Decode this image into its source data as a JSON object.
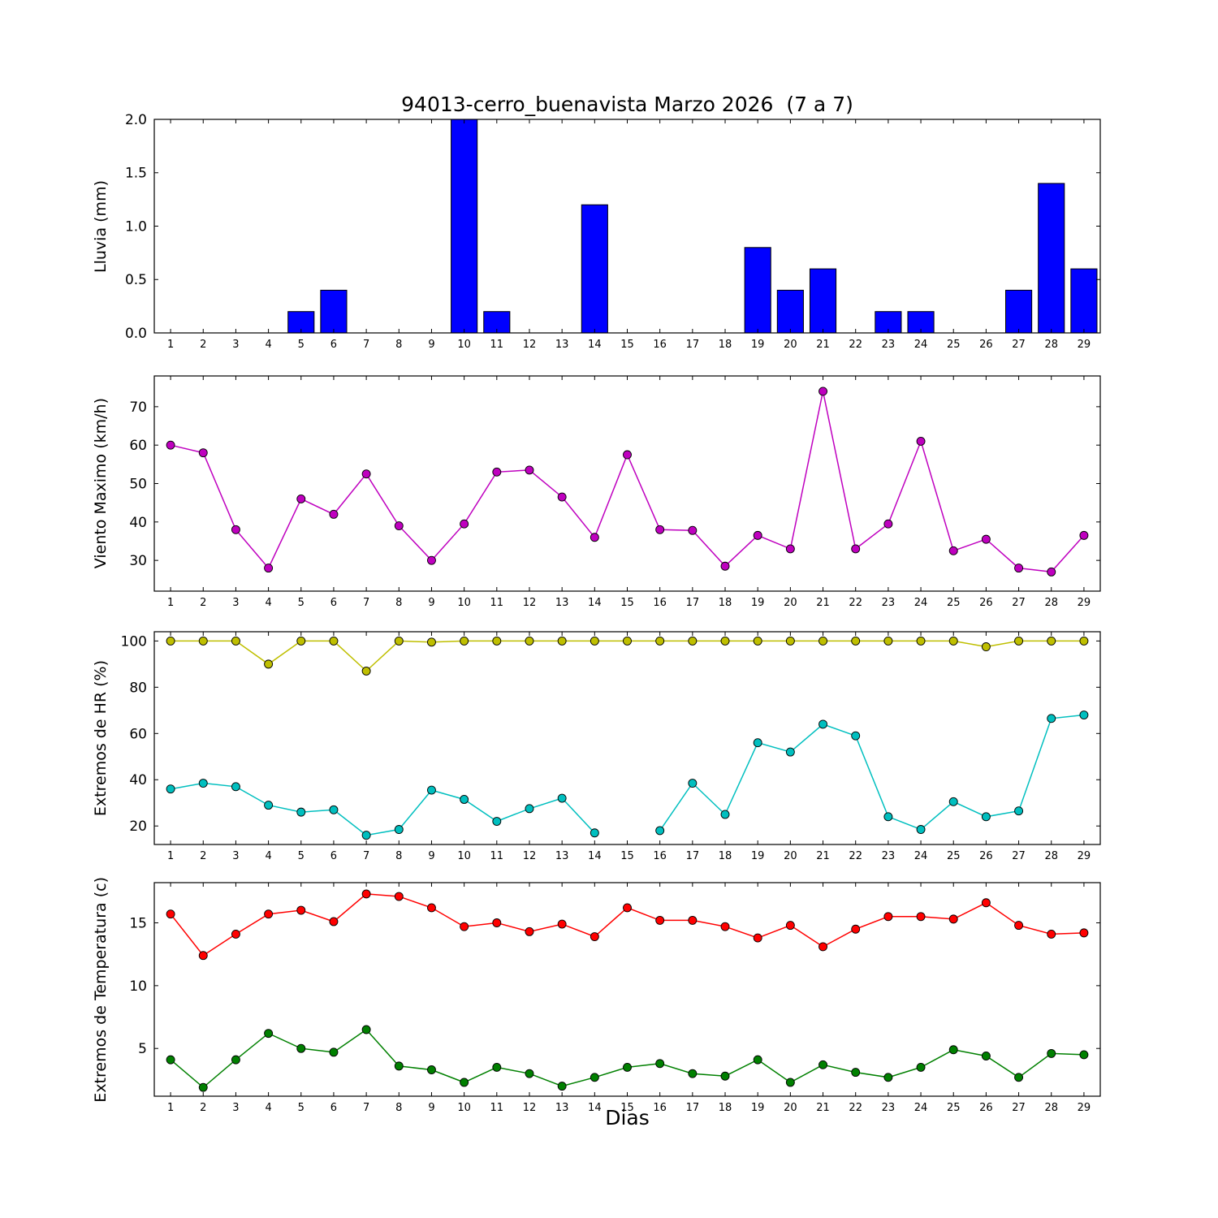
{
  "chart_data": [
    {
      "type": "bar",
      "title": "94013-cerro_buenavista Marzo 2026  (7 a 7)",
      "ylabel": "Lluvia (mm)",
      "categories": [
        1,
        2,
        3,
        4,
        5,
        6,
        7,
        8,
        9,
        10,
        11,
        12,
        13,
        14,
        15,
        16,
        17,
        18,
        19,
        20,
        21,
        22,
        23,
        24,
        25,
        26,
        27,
        28,
        29
      ],
      "values": [
        0,
        0,
        0,
        0,
        0.2,
        0.4,
        0,
        0,
        0,
        2.0,
        0.2,
        0,
        0,
        1.2,
        0,
        0,
        0,
        0,
        0.8,
        0.4,
        0.6,
        0,
        0.2,
        0.2,
        0,
        0,
        0.4,
        1.4,
        0.6
      ],
      "ylim": [
        0,
        2.0
      ],
      "yticks": [
        0,
        0.5,
        1.0,
        1.5,
        2.0
      ],
      "ytick_labels": [
        "0.0",
        "0.5",
        "1.0",
        "1.5",
        "2.0"
      ],
      "bar_color": "#0000ff",
      "bar_edge_color": "#000000",
      "grid": false,
      "legend": "none"
    },
    {
      "type": "line",
      "title": "",
      "ylabel": "Viento Maximo (km/h)",
      "categories": [
        1,
        2,
        3,
        4,
        5,
        6,
        7,
        8,
        9,
        10,
        11,
        12,
        13,
        14,
        15,
        16,
        17,
        18,
        19,
        20,
        21,
        22,
        23,
        24,
        25,
        26,
        27,
        28,
        29
      ],
      "series": [
        {
          "name": "viento_maximo",
          "color": "#bf00bf",
          "marker": "circle",
          "values": [
            60,
            58,
            38,
            28,
            46,
            42,
            52.5,
            39,
            30,
            39.5,
            53,
            53.5,
            46.5,
            36,
            57.5,
            38,
            37.8,
            28.5,
            36.5,
            33,
            74,
            33,
            39.5,
            61,
            32.5,
            35.5,
            28,
            27,
            36.5
          ]
        }
      ],
      "ylim": [
        22,
        78
      ],
      "yticks": [
        30,
        40,
        50,
        60,
        70
      ],
      "ytick_labels": [
        "30",
        "40",
        "50",
        "60",
        "70"
      ],
      "grid": false,
      "legend": "none"
    },
    {
      "type": "line",
      "title": "",
      "ylabel": "Extremos de HR (%)",
      "categories": [
        1,
        2,
        3,
        4,
        5,
        6,
        7,
        8,
        9,
        10,
        11,
        12,
        13,
        14,
        15,
        16,
        17,
        18,
        19,
        20,
        21,
        22,
        23,
        24,
        25,
        26,
        27,
        28,
        29
      ],
      "series": [
        {
          "name": "hr_maxima",
          "color": "#bfbf00",
          "marker": "circle",
          "values": [
            100,
            100,
            100,
            90,
            100,
            100,
            87,
            100,
            99.5,
            100,
            100,
            100,
            100,
            100,
            100,
            100,
            100,
            100,
            100,
            100,
            100,
            100,
            100,
            100,
            100,
            97.5,
            100,
            100,
            100
          ]
        },
        {
          "name": "hr_minima",
          "color": "#00bfbf",
          "marker": "circle",
          "values": [
            36,
            38.5,
            37,
            29,
            26,
            27,
            16,
            18.5,
            35.5,
            31.5,
            22,
            27.5,
            32,
            17,
            null,
            18,
            38.5,
            25,
            56,
            52,
            64,
            59,
            24,
            18.5,
            30.5,
            24,
            26.5,
            66.5,
            68
          ]
        }
      ],
      "ylim": [
        12,
        104
      ],
      "yticks": [
        20,
        40,
        60,
        80,
        100
      ],
      "ytick_labels": [
        "20",
        "40",
        "60",
        "80",
        "100"
      ],
      "grid": false,
      "legend": "none"
    },
    {
      "type": "line",
      "title": "",
      "ylabel": "Extremos de Temperatura (c)",
      "xlabel": "Dias",
      "categories": [
        1,
        2,
        3,
        4,
        5,
        6,
        7,
        8,
        9,
        10,
        11,
        12,
        13,
        14,
        15,
        16,
        17,
        18,
        19,
        20,
        21,
        22,
        23,
        24,
        25,
        26,
        27,
        28,
        29
      ],
      "series": [
        {
          "name": "temperatura_maxima",
          "color": "#ff0000",
          "marker": "circle",
          "values": [
            15.7,
            12.4,
            14.1,
            15.7,
            16.0,
            15.1,
            17.3,
            17.1,
            16.2,
            14.7,
            15.0,
            14.3,
            14.9,
            13.9,
            16.2,
            15.2,
            15.2,
            14.7,
            13.8,
            14.8,
            13.1,
            14.5,
            15.5,
            15.5,
            15.3,
            16.6,
            14.8,
            14.1,
            14.2
          ]
        },
        {
          "name": "temperatura_minima",
          "color": "#008000",
          "marker": "circle",
          "values": [
            4.1,
            1.9,
            4.1,
            6.2,
            5.0,
            4.7,
            6.5,
            3.6,
            3.3,
            2.3,
            3.5,
            3.0,
            2.0,
            2.7,
            3.5,
            3.8,
            3.0,
            2.8,
            4.1,
            2.3,
            3.7,
            3.1,
            2.7,
            3.5,
            4.9,
            4.4,
            2.7,
            4.6,
            4.5
          ]
        }
      ],
      "ylim": [
        1.2,
        18.2
      ],
      "yticks": [
        5,
        10,
        15
      ],
      "ytick_labels": [
        "5",
        "10",
        "15"
      ],
      "grid": false,
      "legend": "none"
    }
  ],
  "colors": {
    "rain_bar": "#0000ff",
    "wind_line": "#bf00bf",
    "hr_max_line": "#bfbf00",
    "hr_min_line": "#00bfbf",
    "temp_max_line": "#ff0000",
    "temp_min_line": "#008000",
    "axis": "#000000",
    "background": "#ffffff"
  }
}
